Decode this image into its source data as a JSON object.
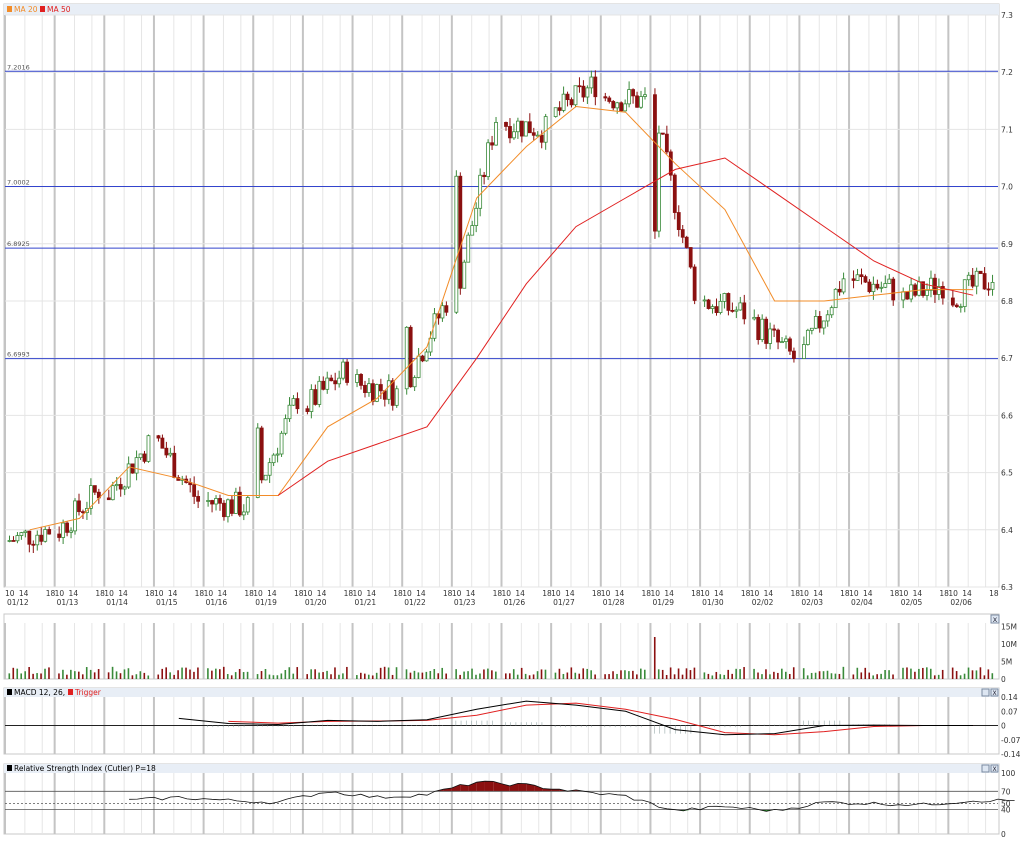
{
  "legend": {
    "price": [
      {
        "label": "MA 20",
        "color": "#f28c28"
      },
      {
        "label": "MA 50",
        "color": "#e02020"
      }
    ],
    "macd": [
      {
        "label": "MACD 12, 26, 9",
        "color": "#000000"
      },
      {
        "label": "Trigger",
        "color": "#e02020"
      }
    ],
    "rsi": [
      {
        "label": "Relative Strength Index (Cutler) P=18",
        "color": "#000000"
      }
    ]
  },
  "panel_buttons": [
    "X"
  ],
  "colors": {
    "up": "#3a8a3a",
    "down": "#8b1010",
    "ma20": "#f28c28",
    "ma50": "#e02020",
    "level": "#3344cc",
    "rsi_over": "#8b1010",
    "rsi_under": "#1e7a1e"
  },
  "chart_data": [
    {
      "type": "candlestick",
      "panel": "price",
      "ylim": [
        6.3,
        7.3
      ],
      "y_ticks": [
        "7.3",
        "7.2",
        "7.1",
        "7.0",
        "6.9",
        "6.8",
        "6.7",
        "6.6",
        "6.5",
        "6.4",
        "6.3"
      ],
      "levels": [
        {
          "label": "7.2016",
          "value": 7.2016
        },
        {
          "label": "7.0002",
          "value": 7.0002
        },
        {
          "label": "6.8925",
          "value": 6.8925
        },
        {
          "label": "6.6993",
          "value": 6.6993
        }
      ],
      "x_hour_labels": [
        "10",
        "14",
        "18"
      ],
      "dates": [
        "01/12",
        "01/13",
        "01/14",
        "01/15",
        "01/16",
        "01/19",
        "01/20",
        "01/21",
        "01/22",
        "01/23",
        "01/26",
        "01/27",
        "01/28",
        "01/29",
        "01/30",
        "02/02",
        "02/03",
        "02/04",
        "02/05",
        "02/06"
      ],
      "day_closes": [
        6.4,
        6.47,
        6.55,
        6.45,
        6.44,
        6.63,
        6.68,
        6.64,
        6.8,
        7.12,
        7.1,
        7.18,
        7.15,
        6.82,
        6.78,
        6.7,
        6.84,
        6.82,
        6.83,
        6.84
      ],
      "ma20_day": [
        6.4,
        6.42,
        6.51,
        6.49,
        6.46,
        6.46,
        6.58,
        6.63,
        6.72,
        6.98,
        7.07,
        7.14,
        7.13,
        7.04,
        6.96,
        6.8,
        6.8,
        6.81,
        6.82,
        6.82
      ],
      "ma50_day": [
        null,
        null,
        null,
        null,
        null,
        6.46,
        6.52,
        6.55,
        6.58,
        6.7,
        6.83,
        6.93,
        6.98,
        7.03,
        7.05,
        6.99,
        6.93,
        6.87,
        6.83,
        6.81
      ]
    },
    {
      "type": "bar",
      "panel": "volume",
      "ylim": [
        0,
        16000000
      ],
      "y_ticks": [
        "15M",
        "10M",
        "5M",
        "0"
      ],
      "typical_volume": 2500000,
      "peak_volume": 12000000
    },
    {
      "type": "line",
      "panel": "macd",
      "ylim": [
        -0.14,
        0.14
      ],
      "y_ticks": [
        "0.14",
        "0.07",
        "0",
        "-0.07",
        "-0.14"
      ],
      "macd_day": [
        null,
        null,
        null,
        0.035,
        0.01,
        0.005,
        0.025,
        0.02,
        0.028,
        0.08,
        0.12,
        0.1,
        0.07,
        -0.02,
        -0.045,
        -0.04,
        0.0,
        0.002,
        0.0,
        0.0
      ],
      "trigger_day": [
        null,
        null,
        null,
        null,
        0.02,
        0.012,
        0.02,
        0.022,
        0.025,
        0.05,
        0.1,
        0.11,
        0.08,
        0.03,
        -0.035,
        -0.045,
        -0.03,
        -0.005,
        0.0,
        0.0
      ]
    },
    {
      "type": "area",
      "panel": "rsi",
      "ylim": [
        0,
        100
      ],
      "y_ticks": [
        "100",
        "70",
        "50",
        "40",
        "0"
      ],
      "bands": [
        70,
        50,
        40
      ],
      "rsi_day": [
        null,
        null,
        55,
        60,
        55,
        52,
        70,
        60,
        65,
        85,
        80,
        70,
        62,
        38,
        45,
        38,
        52,
        50,
        48,
        55
      ]
    }
  ]
}
